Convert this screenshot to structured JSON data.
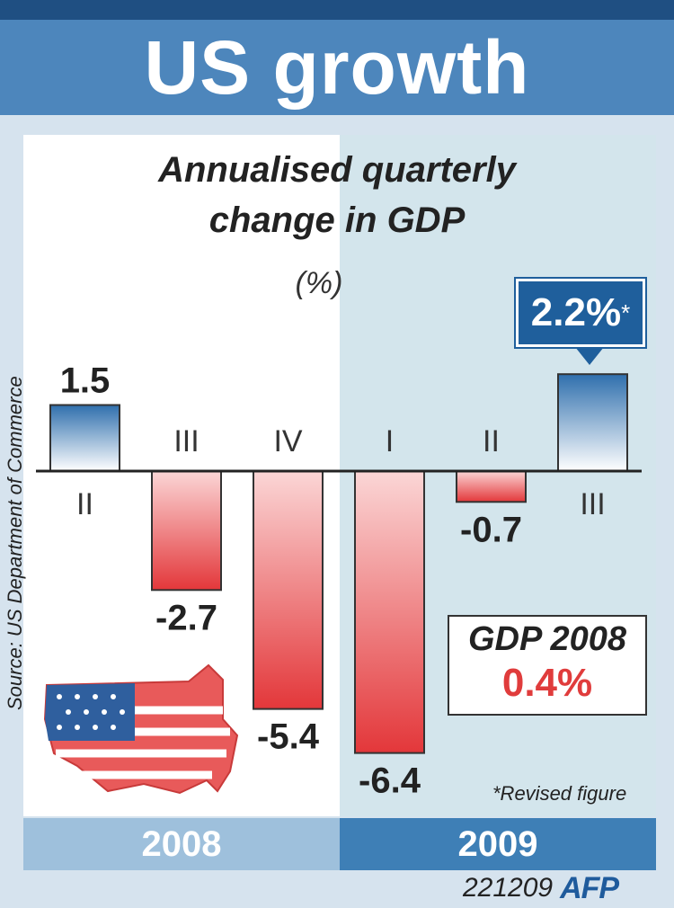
{
  "header": {
    "title": "US growth"
  },
  "chart_data": {
    "type": "bar",
    "title": "Annualised quarterly change in GDP",
    "unit": "(%)",
    "categories": [
      "II",
      "III",
      "IV",
      "I",
      "II",
      "III"
    ],
    "years": [
      "2008",
      "2008",
      "2008",
      "2009",
      "2009",
      "2009"
    ],
    "values": [
      1.5,
      -2.7,
      -5.4,
      -6.4,
      -0.7,
      2.2
    ],
    "value_labels": [
      "1.5",
      "-2.7",
      "-5.4",
      "-6.4",
      "-0.7",
      "2.2%*"
    ],
    "ylim": [
      -6.4,
      2.2
    ],
    "grid": false,
    "colors": {
      "positive": "#3b78b3",
      "negative": "#e23b3b"
    }
  },
  "annotations": {
    "callout": "2.2%",
    "callout_star": "*",
    "revised_note": "*Revised figure",
    "source": "Source: US Department of Commerce"
  },
  "gdp_2008": {
    "label": "GDP 2008",
    "value": "0.4%"
  },
  "years": {
    "first": "2008",
    "second": "2009"
  },
  "footer": {
    "code": "221209",
    "logo": "AFP"
  }
}
